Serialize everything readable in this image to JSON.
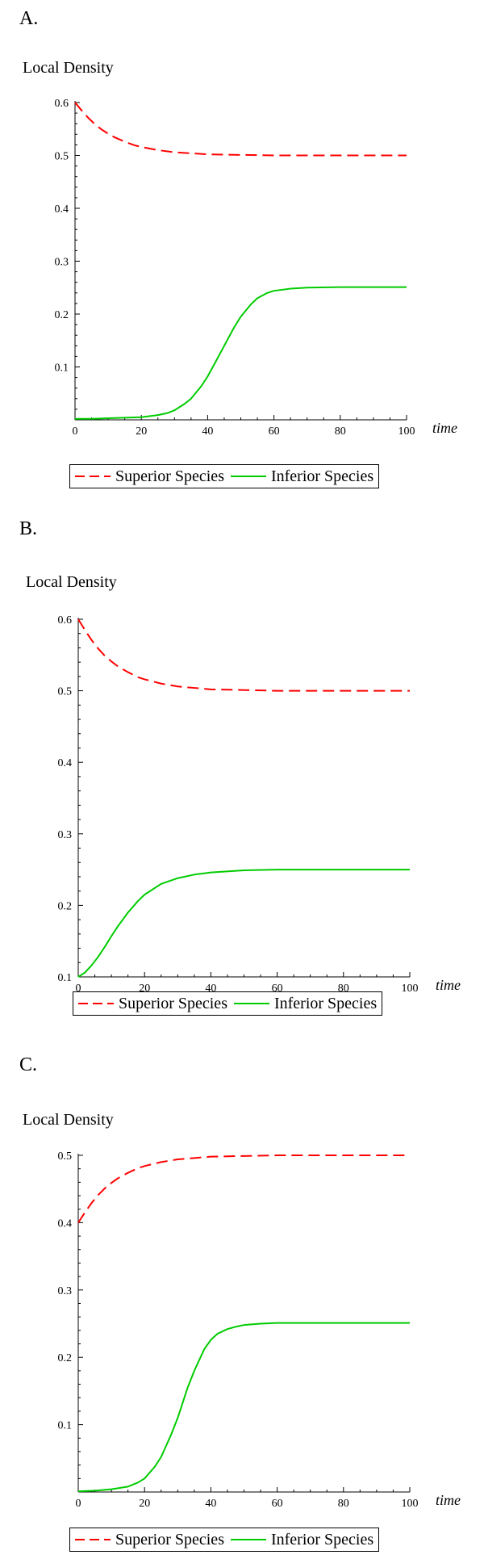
{
  "chart_data": [
    {
      "panel": "A.",
      "type": "line",
      "title": "",
      "ylabel": "Local Density",
      "xlabel": "time",
      "xlim": [
        0,
        100
      ],
      "ylim": [
        0,
        0.6
      ],
      "xticks": [
        0,
        20,
        40,
        60,
        80,
        100
      ],
      "yticks": [
        0.1,
        0.2,
        0.3,
        0.4,
        0.5,
        0.6
      ],
      "legend_position": "bottom",
      "grid": false,
      "series": [
        {
          "name": "Superior Species",
          "color": "#ff0000",
          "style": "dashed",
          "x": [
            0,
            2,
            4,
            6,
            8,
            10,
            12,
            15,
            18,
            20,
            25,
            30,
            35,
            40,
            50,
            60,
            70,
            80,
            90,
            100
          ],
          "y": [
            0.6,
            0.585,
            0.571,
            0.559,
            0.549,
            0.541,
            0.534,
            0.526,
            0.519,
            0.516,
            0.51,
            0.506,
            0.504,
            0.502,
            0.501,
            0.5,
            0.5,
            0.5,
            0.5,
            0.5
          ]
        },
        {
          "name": "Inferior Species",
          "color": "#00cc00",
          "style": "solid",
          "x": [
            0,
            5,
            10,
            15,
            20,
            25,
            28,
            30,
            33,
            35,
            38,
            40,
            42,
            45,
            48,
            50,
            53,
            55,
            58,
            60,
            65,
            70,
            80,
            90,
            100
          ],
          "y": [
            0.002,
            0.002,
            0.003,
            0.004,
            0.005,
            0.009,
            0.013,
            0.018,
            0.03,
            0.04,
            0.063,
            0.082,
            0.105,
            0.14,
            0.175,
            0.195,
            0.218,
            0.23,
            0.24,
            0.244,
            0.248,
            0.25,
            0.251,
            0.251,
            0.251
          ]
        }
      ]
    },
    {
      "panel": "B.",
      "type": "line",
      "title": "",
      "ylabel": "Local Density",
      "xlabel": "time",
      "xlim": [
        0,
        100
      ],
      "ylim": [
        0.1,
        0.6
      ],
      "xticks": [
        0,
        20,
        40,
        60,
        80,
        100
      ],
      "yticks": [
        0.1,
        0.2,
        0.3,
        0.4,
        0.5,
        0.6
      ],
      "legend_position": "bottom",
      "grid": false,
      "series": [
        {
          "name": "Superior Species",
          "color": "#ff0000",
          "style": "dashed",
          "x": [
            0,
            2,
            4,
            6,
            8,
            10,
            12,
            15,
            18,
            20,
            25,
            30,
            35,
            40,
            50,
            60,
            70,
            80,
            90,
            100
          ],
          "y": [
            0.6,
            0.585,
            0.571,
            0.559,
            0.549,
            0.541,
            0.534,
            0.526,
            0.519,
            0.516,
            0.51,
            0.506,
            0.504,
            0.502,
            0.501,
            0.5,
            0.5,
            0.5,
            0.5,
            0.5
          ]
        },
        {
          "name": "Inferior Species",
          "color": "#00cc00",
          "style": "solid",
          "x": [
            0,
            2,
            4,
            6,
            8,
            10,
            12,
            15,
            18,
            20,
            25,
            30,
            35,
            40,
            50,
            60,
            70,
            80,
            90,
            100
          ],
          "y": [
            0.1,
            0.106,
            0.116,
            0.128,
            0.142,
            0.157,
            0.171,
            0.19,
            0.206,
            0.215,
            0.23,
            0.238,
            0.243,
            0.246,
            0.249,
            0.25,
            0.25,
            0.25,
            0.25,
            0.25
          ]
        }
      ]
    },
    {
      "panel": "C.",
      "type": "line",
      "title": "",
      "ylabel": "Local Density",
      "xlabel": "time",
      "xlim": [
        0,
        100
      ],
      "ylim": [
        0,
        0.5
      ],
      "xticks": [
        0,
        20,
        40,
        60,
        80,
        100
      ],
      "yticks": [
        0.1,
        0.2,
        0.3,
        0.4,
        0.5
      ],
      "legend_position": "bottom",
      "grid": false,
      "series": [
        {
          "name": "Superior Species",
          "color": "#ff0000",
          "style": "dashed",
          "x": [
            0,
            2,
            4,
            6,
            8,
            10,
            12,
            15,
            18,
            20,
            25,
            30,
            35,
            40,
            50,
            60,
            70,
            80,
            90,
            100
          ],
          "y": [
            0.4,
            0.415,
            0.429,
            0.441,
            0.451,
            0.459,
            0.466,
            0.474,
            0.481,
            0.484,
            0.49,
            0.494,
            0.496,
            0.498,
            0.499,
            0.5,
            0.5,
            0.5,
            0.5,
            0.5
          ]
        },
        {
          "name": "Inferior Species",
          "color": "#00cc00",
          "style": "solid",
          "x": [
            0,
            5,
            10,
            15,
            18,
            20,
            23,
            25,
            28,
            30,
            33,
            35,
            38,
            40,
            42,
            45,
            48,
            50,
            55,
            60,
            70,
            80,
            90,
            100
          ],
          "y": [
            0.001,
            0.002,
            0.004,
            0.008,
            0.014,
            0.02,
            0.037,
            0.052,
            0.085,
            0.11,
            0.155,
            0.18,
            0.212,
            0.226,
            0.235,
            0.242,
            0.246,
            0.248,
            0.25,
            0.251,
            0.251,
            0.251,
            0.251,
            0.251
          ]
        }
      ]
    }
  ]
}
